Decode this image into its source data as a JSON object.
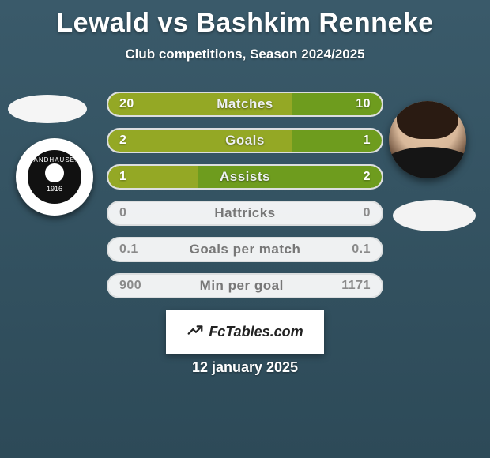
{
  "header": {
    "title": "Lewald vs Bashkim Renneke",
    "subtitle": "Club competitions, Season 2024/2025"
  },
  "players": {
    "left": {
      "name": "Lewald",
      "has_photo": false,
      "club": {
        "name_top": "SANDHAUSEN",
        "year": "1916",
        "badge_bg": "#ffffff",
        "badge_inner": "#111111"
      }
    },
    "right": {
      "name": "Bashkim Renneke",
      "has_photo": true
    }
  },
  "comparison": {
    "left_fill_color": "#94a825",
    "right_fill_color": "#6e9c1e",
    "row_bg": "#f3f3f3",
    "value_fontsize": 16,
    "label_fontsize": 17,
    "rows": [
      {
        "label": "Matches",
        "left": "20",
        "right": "10",
        "left_pct": 67,
        "right_pct": 33
      },
      {
        "label": "Goals",
        "left": "2",
        "right": "1",
        "left_pct": 67,
        "right_pct": 33
      },
      {
        "label": "Assists",
        "left": "1",
        "right": "2",
        "left_pct": 33,
        "right_pct": 67
      },
      {
        "label": "Hattricks",
        "left": "0",
        "right": "0",
        "left_pct": 0,
        "right_pct": 0
      },
      {
        "label": "Goals per match",
        "left": "0.1",
        "right": "0.1",
        "left_pct": 0,
        "right_pct": 0
      },
      {
        "label": "Min per goal",
        "left": "900",
        "right": "1171",
        "left_pct": 0,
        "right_pct": 0
      }
    ]
  },
  "watermark": {
    "brand": "FcTables.com",
    "icon": "chart-line-icon"
  },
  "footer": {
    "date": "12 january 2025"
  },
  "colors": {
    "background_top": "#3a5a6a",
    "background_bottom": "#2d4a58",
    "title_color": "#ffffff"
  }
}
